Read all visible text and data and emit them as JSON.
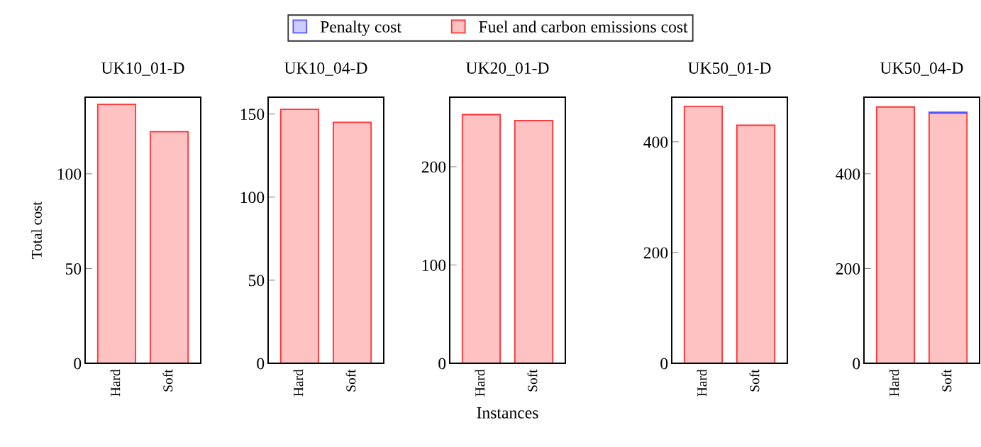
{
  "chart_data": [
    {
      "type": "bar",
      "stacked": true,
      "title": "UK10_01-D",
      "ylabel": "Total cost",
      "categories": [
        "Hard",
        "Soft"
      ],
      "legend": "top",
      "series": [
        {
          "name": "Fuel and carbon emissions cost",
          "color": "#ff3333",
          "values": [
            136.6,
            122.2
          ]
        },
        {
          "name": "Penalty cost",
          "color": "#5555ff",
          "values": [
            0,
            0
          ]
        }
      ],
      "ylim": [
        0,
        140.4
      ],
      "yticks": [
        0,
        50,
        100
      ]
    },
    {
      "type": "bar",
      "stacked": true,
      "title": "UK10_04-D",
      "categories": [
        "Hard",
        "Soft"
      ],
      "series": [
        {
          "color": "#ff3333",
          "values": [
            152.8,
            145.0
          ]
        },
        {
          "color": "#5555ff",
          "values": [
            0,
            0
          ]
        }
      ],
      "ylim": [
        0,
        160.1
      ],
      "yticks": [
        0,
        50,
        100,
        150
      ]
    },
    {
      "type": "bar",
      "stacked": true,
      "title": "UK20_01-D",
      "xlabel": "Instances",
      "categories": [
        "Hard",
        "Soft"
      ],
      "series": [
        {
          "color": "#ff3333",
          "values": [
            253,
            247
          ]
        },
        {
          "color": "#5555ff",
          "values": [
            0,
            0
          ]
        }
      ],
      "ylim": [
        0,
        270.7
      ],
      "yticks": [
        0,
        100,
        200
      ]
    },
    {
      "type": "bar",
      "stacked": true,
      "title": "UK50_01-D",
      "categories": [
        "Hard",
        "Soft"
      ],
      "series": [
        {
          "color": "#ff3333",
          "values": [
            464,
            430
          ]
        },
        {
          "color": "#5555ff",
          "values": [
            0,
            0
          ]
        }
      ],
      "ylim": [
        0,
        480.6
      ],
      "yticks": [
        0,
        200,
        400
      ]
    },
    {
      "type": "bar",
      "stacked": true,
      "title": "UK50_04-D",
      "categories": [
        "Hard",
        "Soft"
      ],
      "series": [
        {
          "color": "#ff3333",
          "values": [
            541,
            528
          ]
        },
        {
          "color": "#5555ff",
          "values": [
            0,
            2
          ]
        }
      ],
      "ylim": [
        0,
        561.6
      ],
      "yticks": [
        0,
        200,
        400
      ]
    }
  ]
}
